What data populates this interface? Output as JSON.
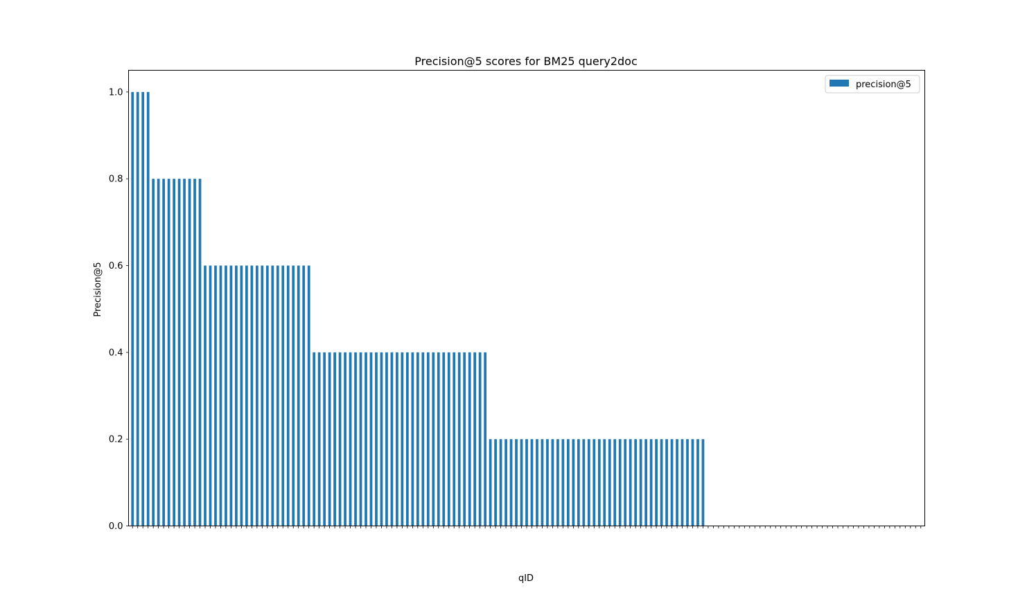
{
  "chart_data": {
    "type": "bar",
    "title": "Precision@5 scores for BM25 query2doc",
    "xlabel": "qID",
    "ylabel": "Precision@5",
    "ylim": [
      0,
      1.05
    ],
    "yticks": [
      "0.0",
      "0.2",
      "0.4",
      "0.6",
      "0.8",
      "1.0"
    ],
    "grid": false,
    "legend": {
      "placement": "top-right",
      "entries": [
        "precision@5"
      ]
    },
    "series": [
      {
        "name": "precision@5",
        "color": "#1f77b4",
        "values": [
          1.0,
          1.0,
          1.0,
          1.0,
          0.8,
          0.8,
          0.8,
          0.8,
          0.8,
          0.8,
          0.8,
          0.8,
          0.8,
          0.8,
          0.6,
          0.6,
          0.6,
          0.6,
          0.6,
          0.6,
          0.6,
          0.6,
          0.6,
          0.6,
          0.6,
          0.6,
          0.6,
          0.6,
          0.6,
          0.6,
          0.6,
          0.6,
          0.6,
          0.6,
          0.6,
          0.4,
          0.4,
          0.4,
          0.4,
          0.4,
          0.4,
          0.4,
          0.4,
          0.4,
          0.4,
          0.4,
          0.4,
          0.4,
          0.4,
          0.4,
          0.4,
          0.4,
          0.4,
          0.4,
          0.4,
          0.4,
          0.4,
          0.4,
          0.4,
          0.4,
          0.4,
          0.4,
          0.4,
          0.4,
          0.4,
          0.4,
          0.4,
          0.4,
          0.4,
          0.2,
          0.2,
          0.2,
          0.2,
          0.2,
          0.2,
          0.2,
          0.2,
          0.2,
          0.2,
          0.2,
          0.2,
          0.2,
          0.2,
          0.2,
          0.2,
          0.2,
          0.2,
          0.2,
          0.2,
          0.2,
          0.2,
          0.2,
          0.2,
          0.2,
          0.2,
          0.2,
          0.2,
          0.2,
          0.2,
          0.2,
          0.2,
          0.2,
          0.2,
          0.2,
          0.2,
          0.2,
          0.2,
          0.2,
          0.2,
          0.2,
          0.2,
          0.0,
          0.0,
          0.0,
          0.0,
          0.0,
          0.0,
          0.0,
          0.0,
          0.0,
          0.0,
          0.0,
          0.0,
          0.0,
          0.0,
          0.0,
          0.0,
          0.0,
          0.0,
          0.0,
          0.0,
          0.0,
          0.0,
          0.0,
          0.0,
          0.0,
          0.0,
          0.0,
          0.0,
          0.0,
          0.0,
          0.0,
          0.0,
          0.0,
          0.0,
          0.0,
          0.0,
          0.0,
          0.0,
          0.0,
          0.0,
          0.0,
          0.0
        ]
      }
    ]
  }
}
